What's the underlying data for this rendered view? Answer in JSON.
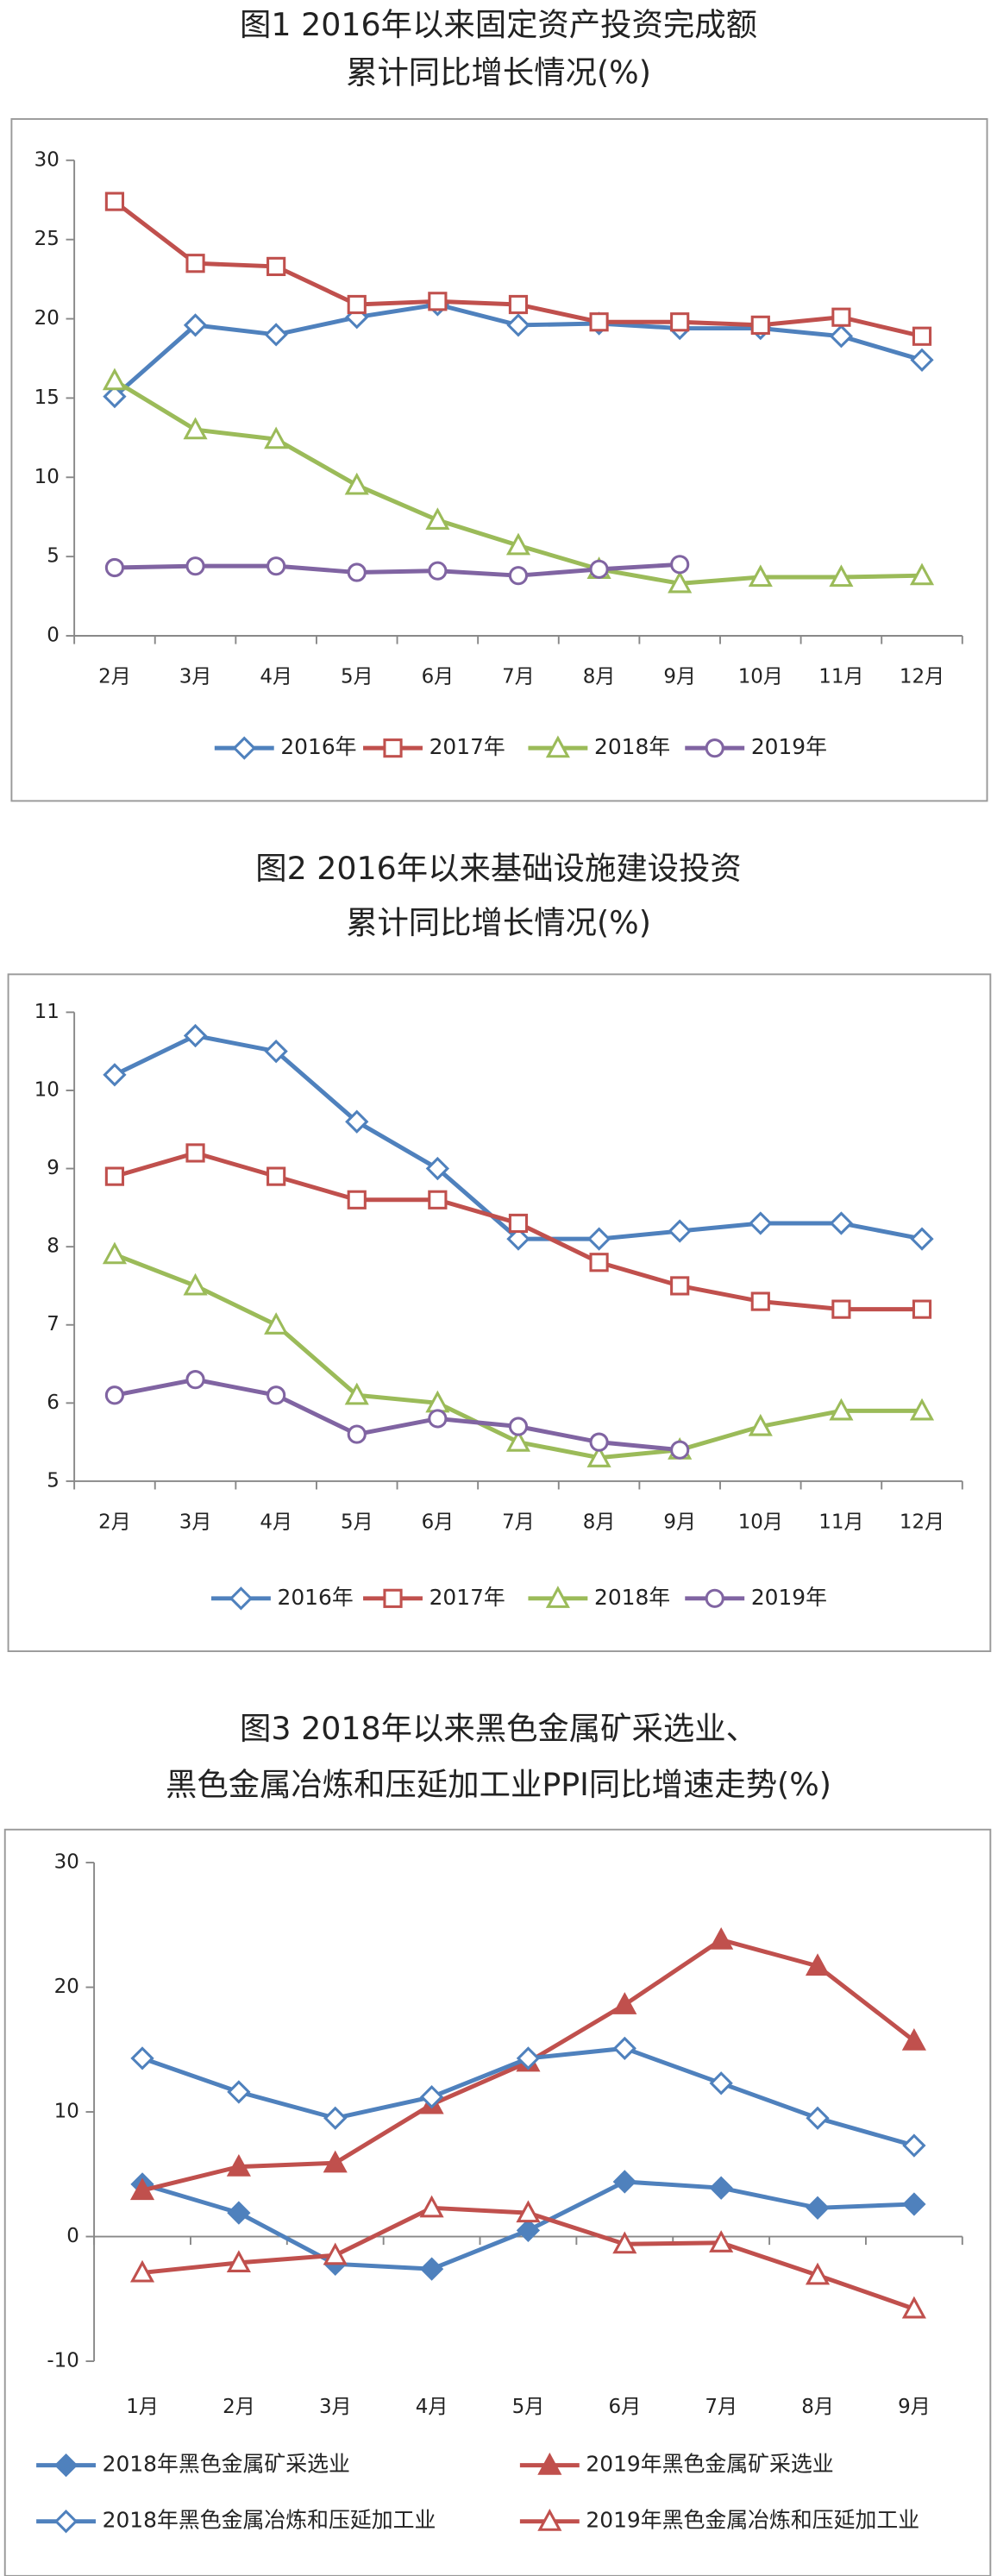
{
  "chart_data": [
    {
      "type": "line",
      "title": [
        "图1 2016年以来固定资产投资完成额",
        "累计同比增长情况(%)"
      ],
      "categories": [
        "2月",
        "3月",
        "4月",
        "5月",
        "6月",
        "7月",
        "8月",
        "9月",
        "10月",
        "11月",
        "12月"
      ],
      "ylim": [
        0,
        30
      ],
      "yticks": [
        0,
        5,
        10,
        15,
        20,
        25,
        30
      ],
      "series": [
        {
          "name": "2016年",
          "color": "#4f81bd",
          "marker": "diamond",
          "filled": false,
          "values": [
            15.1,
            19.6,
            19.0,
            20.1,
            20.9,
            19.6,
            19.7,
            19.4,
            19.4,
            18.9,
            17.4
          ]
        },
        {
          "name": "2017年",
          "color": "#c0504d",
          "marker": "square",
          "filled": false,
          "values": [
            27.4,
            23.5,
            23.3,
            20.9,
            21.1,
            20.9,
            19.8,
            19.8,
            19.6,
            20.1,
            18.9
          ]
        },
        {
          "name": "2018年",
          "color": "#9bbb59",
          "marker": "triangle",
          "filled": false,
          "values": [
            16.1,
            13.0,
            12.4,
            9.5,
            7.3,
            5.7,
            4.2,
            3.3,
            3.7,
            3.7,
            3.8
          ]
        },
        {
          "name": "2019年",
          "color": "#8064a2",
          "marker": "circle",
          "filled": false,
          "values": [
            4.3,
            4.4,
            4.4,
            4.0,
            4.1,
            3.8,
            4.2,
            4.5,
            null,
            null,
            null
          ]
        }
      ]
    },
    {
      "type": "line",
      "title": [
        "图2 2016年以来基础设施建设投资",
        "累计同比增长情况(%)"
      ],
      "categories": [
        "2月",
        "3月",
        "4月",
        "5月",
        "6月",
        "7月",
        "8月",
        "9月",
        "10月",
        "11月",
        "12月"
      ],
      "ylim": [
        5,
        11
      ],
      "yticks": [
        5,
        6,
        7,
        8,
        9,
        10,
        11
      ],
      "series": [
        {
          "name": "2016年",
          "color": "#4f81bd",
          "marker": "diamond",
          "filled": false,
          "values": [
            10.2,
            10.7,
            10.5,
            9.6,
            9.0,
            8.1,
            8.1,
            8.2,
            8.3,
            8.3,
            8.1
          ]
        },
        {
          "name": "2017年",
          "color": "#c0504d",
          "marker": "square",
          "filled": false,
          "values": [
            8.9,
            9.2,
            8.9,
            8.6,
            8.6,
            8.3,
            7.8,
            7.5,
            7.3,
            7.2,
            7.2
          ]
        },
        {
          "name": "2018年",
          "color": "#9bbb59",
          "marker": "triangle",
          "filled": false,
          "values": [
            7.9,
            7.5,
            7.0,
            6.1,
            6.0,
            5.5,
            5.3,
            5.4,
            5.7,
            5.9,
            5.9
          ]
        },
        {
          "name": "2019年",
          "color": "#8064a2",
          "marker": "circle",
          "filled": false,
          "values": [
            6.1,
            6.3,
            6.1,
            5.6,
            5.8,
            5.7,
            5.5,
            5.4,
            null,
            null,
            null
          ]
        }
      ]
    },
    {
      "type": "line",
      "title": [
        "图3 2018年以来黑色金属矿采选业、",
        "黑色金属冶炼和压延加工业PPI同比增速走势(%)"
      ],
      "categories": [
        "1月",
        "2月",
        "3月",
        "4月",
        "5月",
        "6月",
        "7月",
        "8月",
        "9月"
      ],
      "ylim": [
        -10,
        30
      ],
      "yticks": [
        -10,
        0,
        10,
        20,
        30
      ],
      "series": [
        {
          "name": "2018年黑色金属矿采选业",
          "color": "#4f81bd",
          "marker": "diamond",
          "filled": true,
          "values": [
            4.2,
            1.9,
            -2.2,
            -2.6,
            0.5,
            4.4,
            3.9,
            2.3,
            2.6
          ]
        },
        {
          "name": "2019年黑色金属矿采选业",
          "color": "#c0504d",
          "marker": "triangle",
          "filled": true,
          "values": [
            3.7,
            5.6,
            5.9,
            10.6,
            14.0,
            18.6,
            23.8,
            21.7,
            15.7
          ]
        },
        {
          "name": "2018年黑色金属冶炼和压延加工业",
          "color": "#4f81bd",
          "marker": "diamond",
          "filled": false,
          "values": [
            14.3,
            11.6,
            9.5,
            11.2,
            14.3,
            15.1,
            12.3,
            9.5,
            7.3
          ]
        },
        {
          "name": "2019年黑色金属冶炼和压延加工业",
          "color": "#c0504d",
          "marker": "triangle",
          "filled": false,
          "values": [
            -2.9,
            -2.1,
            -1.5,
            2.3,
            1.9,
            -0.6,
            -0.5,
            -3.1,
            -5.8
          ]
        }
      ]
    }
  ]
}
